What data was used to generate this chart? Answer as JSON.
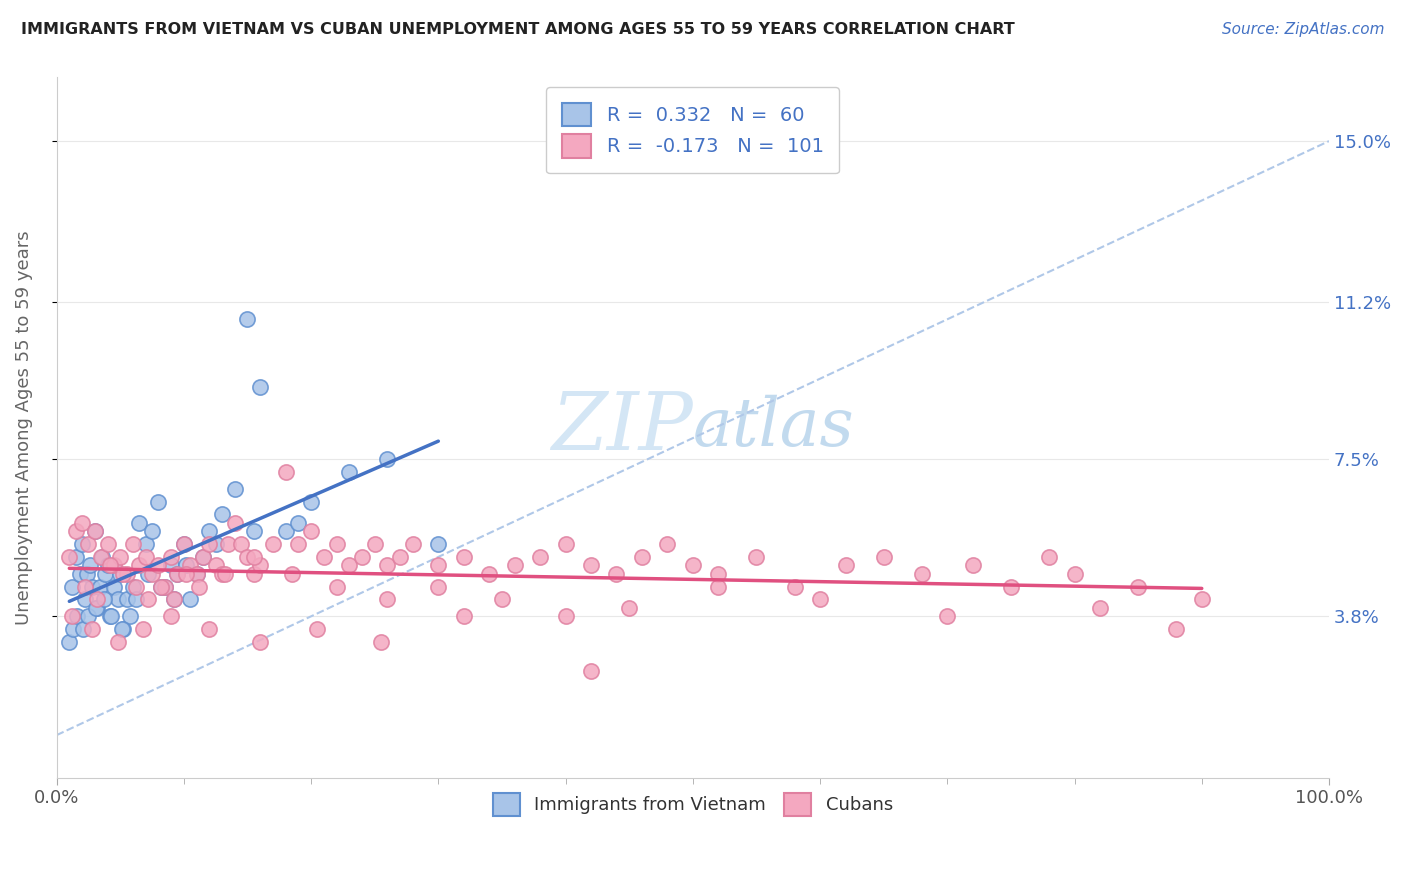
{
  "title": "IMMIGRANTS FROM VIETNAM VS CUBAN UNEMPLOYMENT AMONG AGES 55 TO 59 YEARS CORRELATION CHART",
  "source": "Source: ZipAtlas.com",
  "ylabel": "Unemployment Among Ages 55 to 59 years",
  "x_min": 0.0,
  "x_max": 100.0,
  "y_min": 0.0,
  "y_max": 16.5,
  "y_tick_labels_right": [
    "3.8%",
    "7.5%",
    "11.2%",
    "15.0%"
  ],
  "y_tick_values_right": [
    3.8,
    7.5,
    11.2,
    15.0
  ],
  "legend_labels": [
    "Immigrants from Vietnam",
    "Cubans"
  ],
  "vietnam_R": 0.332,
  "vietnam_N": 60,
  "cuba_R": -0.173,
  "cuba_N": 101,
  "vietnam_color": "#a8c4e8",
  "cuba_color": "#f4a8c0",
  "vietnam_edge_color": "#6090d0",
  "cuba_edge_color": "#e080a0",
  "vietnam_line_color": "#4472c4",
  "cuba_line_color": "#e05080",
  "trend_line_color": "#b0c8e8",
  "background_color": "#ffffff",
  "grid_color": "#e8e8e8",
  "title_color": "#222222",
  "label_color": "#4472c4",
  "watermark_color": "#d0e4f4",
  "vietnam_scatter_x": [
    1.2,
    1.5,
    1.8,
    2.0,
    2.2,
    2.4,
    2.6,
    2.8,
    3.0,
    3.2,
    3.4,
    3.6,
    3.8,
    4.0,
    4.2,
    4.5,
    4.8,
    5.0,
    5.2,
    5.5,
    5.8,
    6.0,
    6.5,
    7.0,
    7.5,
    8.0,
    8.5,
    9.0,
    9.5,
    10.0,
    10.5,
    11.0,
    11.5,
    12.0,
    13.0,
    14.0,
    15.0,
    16.0,
    18.0,
    20.0,
    23.0,
    26.0,
    1.0,
    1.3,
    1.6,
    2.1,
    2.5,
    3.1,
    3.7,
    4.3,
    5.1,
    6.2,
    7.2,
    8.2,
    9.2,
    10.2,
    12.5,
    15.5,
    19.0,
    30.0
  ],
  "vietnam_scatter_y": [
    4.5,
    5.2,
    4.8,
    5.5,
    4.2,
    4.8,
    5.0,
    4.5,
    5.8,
    4.0,
    4.5,
    5.2,
    4.8,
    5.0,
    3.8,
    4.5,
    4.2,
    4.8,
    3.5,
    4.2,
    3.8,
    4.5,
    6.0,
    5.5,
    5.8,
    6.5,
    4.5,
    5.0,
    4.8,
    5.5,
    4.2,
    4.8,
    5.2,
    5.8,
    6.2,
    6.8,
    10.8,
    9.2,
    5.8,
    6.5,
    7.2,
    7.5,
    3.2,
    3.5,
    3.8,
    3.5,
    3.8,
    4.0,
    4.2,
    3.8,
    3.5,
    4.2,
    4.8,
    4.5,
    4.2,
    5.0,
    5.5,
    5.8,
    6.0,
    5.5
  ],
  "cuba_scatter_x": [
    1.0,
    1.5,
    2.0,
    2.5,
    3.0,
    3.5,
    4.0,
    4.5,
    5.0,
    5.5,
    6.0,
    6.5,
    7.0,
    7.5,
    8.0,
    8.5,
    9.0,
    9.5,
    10.0,
    10.5,
    11.0,
    11.5,
    12.0,
    12.5,
    13.0,
    13.5,
    14.0,
    14.5,
    15.0,
    15.5,
    16.0,
    17.0,
    18.0,
    19.0,
    20.0,
    21.0,
    22.0,
    23.0,
    24.0,
    25.0,
    26.0,
    27.0,
    28.0,
    30.0,
    32.0,
    34.0,
    36.0,
    38.0,
    40.0,
    42.0,
    44.0,
    46.0,
    48.0,
    50.0,
    52.0,
    55.0,
    58.0,
    62.0,
    65.0,
    68.0,
    72.0,
    75.0,
    78.0,
    80.0,
    85.0,
    90.0,
    2.2,
    3.2,
    4.2,
    5.2,
    6.2,
    7.2,
    8.2,
    9.2,
    10.2,
    11.2,
    13.2,
    15.5,
    18.5,
    22.0,
    26.0,
    30.0,
    35.0,
    40.0,
    45.0,
    52.0,
    60.0,
    70.0,
    82.0,
    88.0,
    1.2,
    2.8,
    4.8,
    6.8,
    9.0,
    12.0,
    16.0,
    20.5,
    25.5,
    32.0,
    42.0
  ],
  "cuba_scatter_y": [
    5.2,
    5.8,
    6.0,
    5.5,
    5.8,
    5.2,
    5.5,
    5.0,
    5.2,
    4.8,
    5.5,
    5.0,
    5.2,
    4.8,
    5.0,
    4.5,
    5.2,
    4.8,
    5.5,
    5.0,
    4.8,
    5.2,
    5.5,
    5.0,
    4.8,
    5.5,
    6.0,
    5.5,
    5.2,
    4.8,
    5.0,
    5.5,
    7.2,
    5.5,
    5.8,
    5.2,
    5.5,
    5.0,
    5.2,
    5.5,
    5.0,
    5.2,
    5.5,
    5.0,
    5.2,
    4.8,
    5.0,
    5.2,
    5.5,
    5.0,
    4.8,
    5.2,
    5.5,
    5.0,
    4.8,
    5.2,
    4.5,
    5.0,
    5.2,
    4.8,
    5.0,
    4.5,
    5.2,
    4.8,
    4.5,
    4.2,
    4.5,
    4.2,
    5.0,
    4.8,
    4.5,
    4.2,
    4.5,
    4.2,
    4.8,
    4.5,
    4.8,
    5.2,
    4.8,
    4.5,
    4.2,
    4.5,
    4.2,
    3.8,
    4.0,
    4.5,
    4.2,
    3.8,
    4.0,
    3.5,
    3.8,
    3.5,
    3.2,
    3.5,
    3.8,
    3.5,
    3.2,
    3.5,
    3.2,
    3.8,
    2.5
  ]
}
